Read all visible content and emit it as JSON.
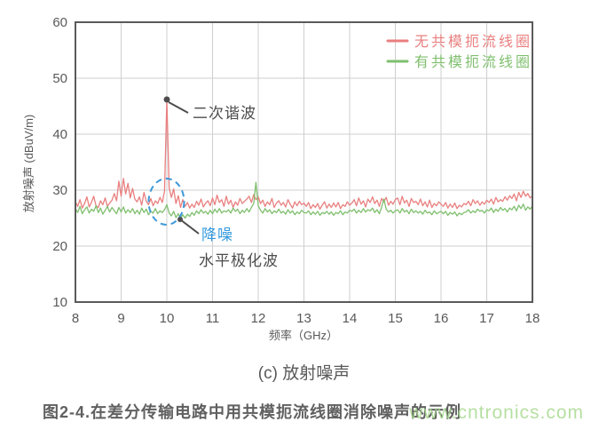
{
  "captions": {
    "subcaption": "(c) 放射噪声",
    "figure_caption": "图2-4.在差分传输电路中用共模扼流线圈消除噪声的示例"
  },
  "watermark": {
    "text": "www.cntronics.com",
    "color": "#a5d88a"
  },
  "chart_data": {
    "type": "line",
    "title": "",
    "xlabel": "频率（GHz）",
    "ylabel": "放射噪声 (dBuV/m)",
    "xlim": [
      8,
      18
    ],
    "ylim": [
      10,
      60
    ],
    "xticks": [
      8,
      9,
      10,
      11,
      12,
      13,
      14,
      15,
      16,
      17,
      18
    ],
    "yticks": [
      10,
      20,
      30,
      40,
      50,
      60
    ],
    "grid": true,
    "legend_position": "top-right-inside",
    "x_start": 8,
    "x_step": 0.05,
    "series": [
      {
        "name": "无共模扼流线圈",
        "color": "#e97f7f",
        "values": [
          27.9,
          27.1,
          28.3,
          26.8,
          27.6,
          28.8,
          27.0,
          27.8,
          28.9,
          27.2,
          26.9,
          28.1,
          27.4,
          28.6,
          27.1,
          27.7,
          28.2,
          29.4,
          28.1,
          31.6,
          28.9,
          32.1,
          29.3,
          31.2,
          28.6,
          30.3,
          28.4,
          27.9,
          28.8,
          27.3,
          29.6,
          28.0,
          27.4,
          28.5,
          27.2,
          28.1,
          27.6,
          28.7,
          27.8,
          29.8,
          46.2,
          30.4,
          28.7,
          30.2,
          27.6,
          29.0,
          26.9,
          28.3,
          27.1,
          27.8,
          26.8,
          27.5,
          26.9,
          28.0,
          27.3,
          28.4,
          27.0,
          27.7,
          28.1,
          27.2,
          28.6,
          27.4,
          29.1,
          27.8,
          28.3,
          27.1,
          28.9,
          27.5,
          28.2,
          26.9,
          27.9,
          27.3,
          28.5,
          27.6,
          28.0,
          28.4,
          28.9,
          27.8,
          29.2,
          28.3,
          28.8,
          27.6,
          28.2,
          27.1,
          27.9,
          27.4,
          28.5,
          26.9,
          27.7,
          28.1,
          27.3,
          27.8,
          27.0,
          28.3,
          27.5,
          26.8,
          27.9,
          27.2,
          28.0,
          27.4,
          27.7,
          27.1,
          27.8,
          26.7,
          27.4,
          26.9,
          27.6,
          26.6,
          27.3,
          27.9,
          26.8,
          27.5,
          26.9,
          27.7,
          27.0,
          27.8,
          26.7,
          27.4,
          27.1,
          27.9,
          27.3,
          27.7,
          28.3,
          27.2,
          28.6,
          27.5,
          28.1,
          27.0,
          28.4,
          27.8,
          28.8,
          27.6,
          28.2,
          27.1,
          28.5,
          27.9,
          28.7,
          27.3,
          28.0,
          27.5,
          28.3,
          28.6,
          27.4,
          28.9,
          27.7,
          28.2,
          27.1,
          28.5,
          27.8,
          28.0,
          27.4,
          28.4,
          27.2,
          27.9,
          27.0,
          28.2,
          26.9,
          27.6,
          27.2,
          27.9,
          27.5,
          27.1,
          27.8,
          26.8,
          27.5,
          26.9,
          27.7,
          26.7,
          27.3,
          27.0,
          27.6,
          27.4,
          28.0,
          27.2,
          28.3,
          27.6,
          28.1,
          27.3,
          27.9,
          27.5,
          28.2,
          27.8,
          28.4,
          27.5,
          28.7,
          27.9,
          28.3,
          28.0,
          28.8,
          28.2,
          29.0,
          28.5,
          29.3,
          28.1,
          29.6,
          28.7,
          29.8,
          28.9,
          29.4,
          28.6,
          29.0
        ]
      },
      {
        "name": "有共模扼流线圈",
        "color": "#7fbf6e",
        "values": [
          26.7,
          26.0,
          27.1,
          25.8,
          26.5,
          27.0,
          25.9,
          26.6,
          26.2,
          27.2,
          26.0,
          26.8,
          25.7,
          26.4,
          27.1,
          26.1,
          26.9,
          26.3,
          25.8,
          26.9,
          26.1,
          27.0,
          25.9,
          26.5,
          26.0,
          26.7,
          25.8,
          26.4,
          25.7,
          26.8,
          26.0,
          26.6,
          25.6,
          26.2,
          25.9,
          26.7,
          25.8,
          26.3,
          26.0,
          26.5,
          27.4,
          25.9,
          25.4,
          26.2,
          25.1,
          25.8,
          24.9,
          25.6,
          25.0,
          25.7,
          25.3,
          26.0,
          25.5,
          26.3,
          25.8,
          26.5,
          25.9,
          26.2,
          25.7,
          26.4,
          25.8,
          26.6,
          26.0,
          26.7,
          25.9,
          26.3,
          26.1,
          26.5,
          25.9,
          26.8,
          26.2,
          26.6,
          25.8,
          26.4,
          26.0,
          26.7,
          26.1,
          26.9,
          27.6,
          31.4,
          27.2,
          26.4,
          25.9,
          26.7,
          26.1,
          26.5,
          25.8,
          26.3,
          26.0,
          26.6,
          25.9,
          26.2,
          25.7,
          26.5,
          25.9,
          26.3,
          25.6,
          26.1,
          25.8,
          26.4,
          26.0,
          25.9,
          26.3,
          25.6,
          26.1,
          25.7,
          26.2,
          25.5,
          26.0,
          25.8,
          26.2,
          25.7,
          26.1,
          25.5,
          26.0,
          25.8,
          26.3,
          25.6,
          26.1,
          25.9,
          26.4,
          26.2,
          26.6,
          25.9,
          26.4,
          26.0,
          26.7,
          26.1,
          26.5,
          26.3,
          26.8,
          26.0,
          26.5,
          25.8,
          26.9,
          28.4,
          26.6,
          26.1,
          26.4,
          25.9,
          26.3,
          26.5,
          25.9,
          26.7,
          26.1,
          26.4,
          25.8,
          26.6,
          26.0,
          26.3,
          25.9,
          26.2,
          25.7,
          26.4,
          25.9,
          26.1,
          25.6,
          26.3,
          25.8,
          26.0,
          26.2,
          25.8,
          26.2,
          25.5,
          26.0,
          25.7,
          26.1,
          25.4,
          25.9,
          25.6,
          26.0,
          26.1,
          26.5,
          25.9,
          26.3,
          26.0,
          26.6,
          26.2,
          26.4,
          25.9,
          26.5,
          26.3,
          26.8,
          26.0,
          26.6,
          26.2,
          26.9,
          26.4,
          26.7,
          26.1,
          26.8,
          26.5,
          27.1,
          26.3,
          27.3,
          26.7,
          27.5,
          26.4,
          27.0,
          26.6,
          27.2
        ]
      }
    ],
    "annotations": [
      {
        "text": "二次谐波",
        "color": "#4d4d4d",
        "target_x_ghz": 10.0,
        "target_y_db": 46.2
      },
      {
        "text": "降噪",
        "color": "#3399dd",
        "circle_color": "#3b97d9",
        "circle_x_ghz": 10.0,
        "circle_y_db": 27.5
      },
      {
        "text": "水平极化波",
        "color": "#4d4d4d"
      }
    ]
  }
}
